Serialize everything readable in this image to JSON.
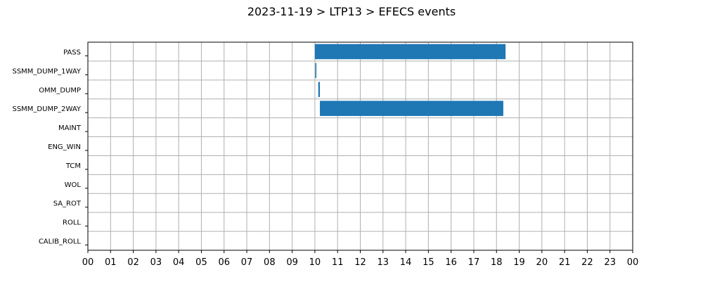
{
  "chart_data": {
    "type": "bar",
    "orientation": "horizontal",
    "title": "2023-11-19 > LTP13 > EFECS events",
    "xlabel": "",
    "ylabel": "",
    "xlim": [
      0,
      24
    ],
    "grid": true,
    "categories": [
      "PASS",
      "SSMM_DUMP_1WAY",
      "OMM_DUMP",
      "SSMM_DUMP_2WAY",
      "MAINT",
      "ENG_WIN",
      "TCM",
      "WOL",
      "SA_ROT",
      "ROLL",
      "CALIB_ROLL"
    ],
    "x_ticks": [
      0,
      1,
      2,
      3,
      4,
      5,
      6,
      7,
      8,
      9,
      10,
      11,
      12,
      13,
      14,
      15,
      16,
      17,
      18,
      19,
      20,
      21,
      22,
      23,
      24
    ],
    "x_tick_labels": [
      "00",
      "01",
      "02",
      "03",
      "04",
      "05",
      "06",
      "07",
      "08",
      "09",
      "10",
      "11",
      "12",
      "13",
      "14",
      "15",
      "16",
      "17",
      "18",
      "19",
      "20",
      "21",
      "22",
      "23",
      "00"
    ],
    "events": [
      {
        "category": "PASS",
        "start": 10.0,
        "end": 18.4
      },
      {
        "category": "SSMM_DUMP_1WAY",
        "start": 10.02,
        "end": 10.06
      },
      {
        "category": "OMM_DUMP",
        "start": 10.15,
        "end": 10.22
      },
      {
        "category": "SSMM_DUMP_2WAY",
        "start": 10.22,
        "end": 18.3
      }
    ],
    "bar_color": "#1f77b4",
    "grid_color": "#b0b0b0"
  }
}
